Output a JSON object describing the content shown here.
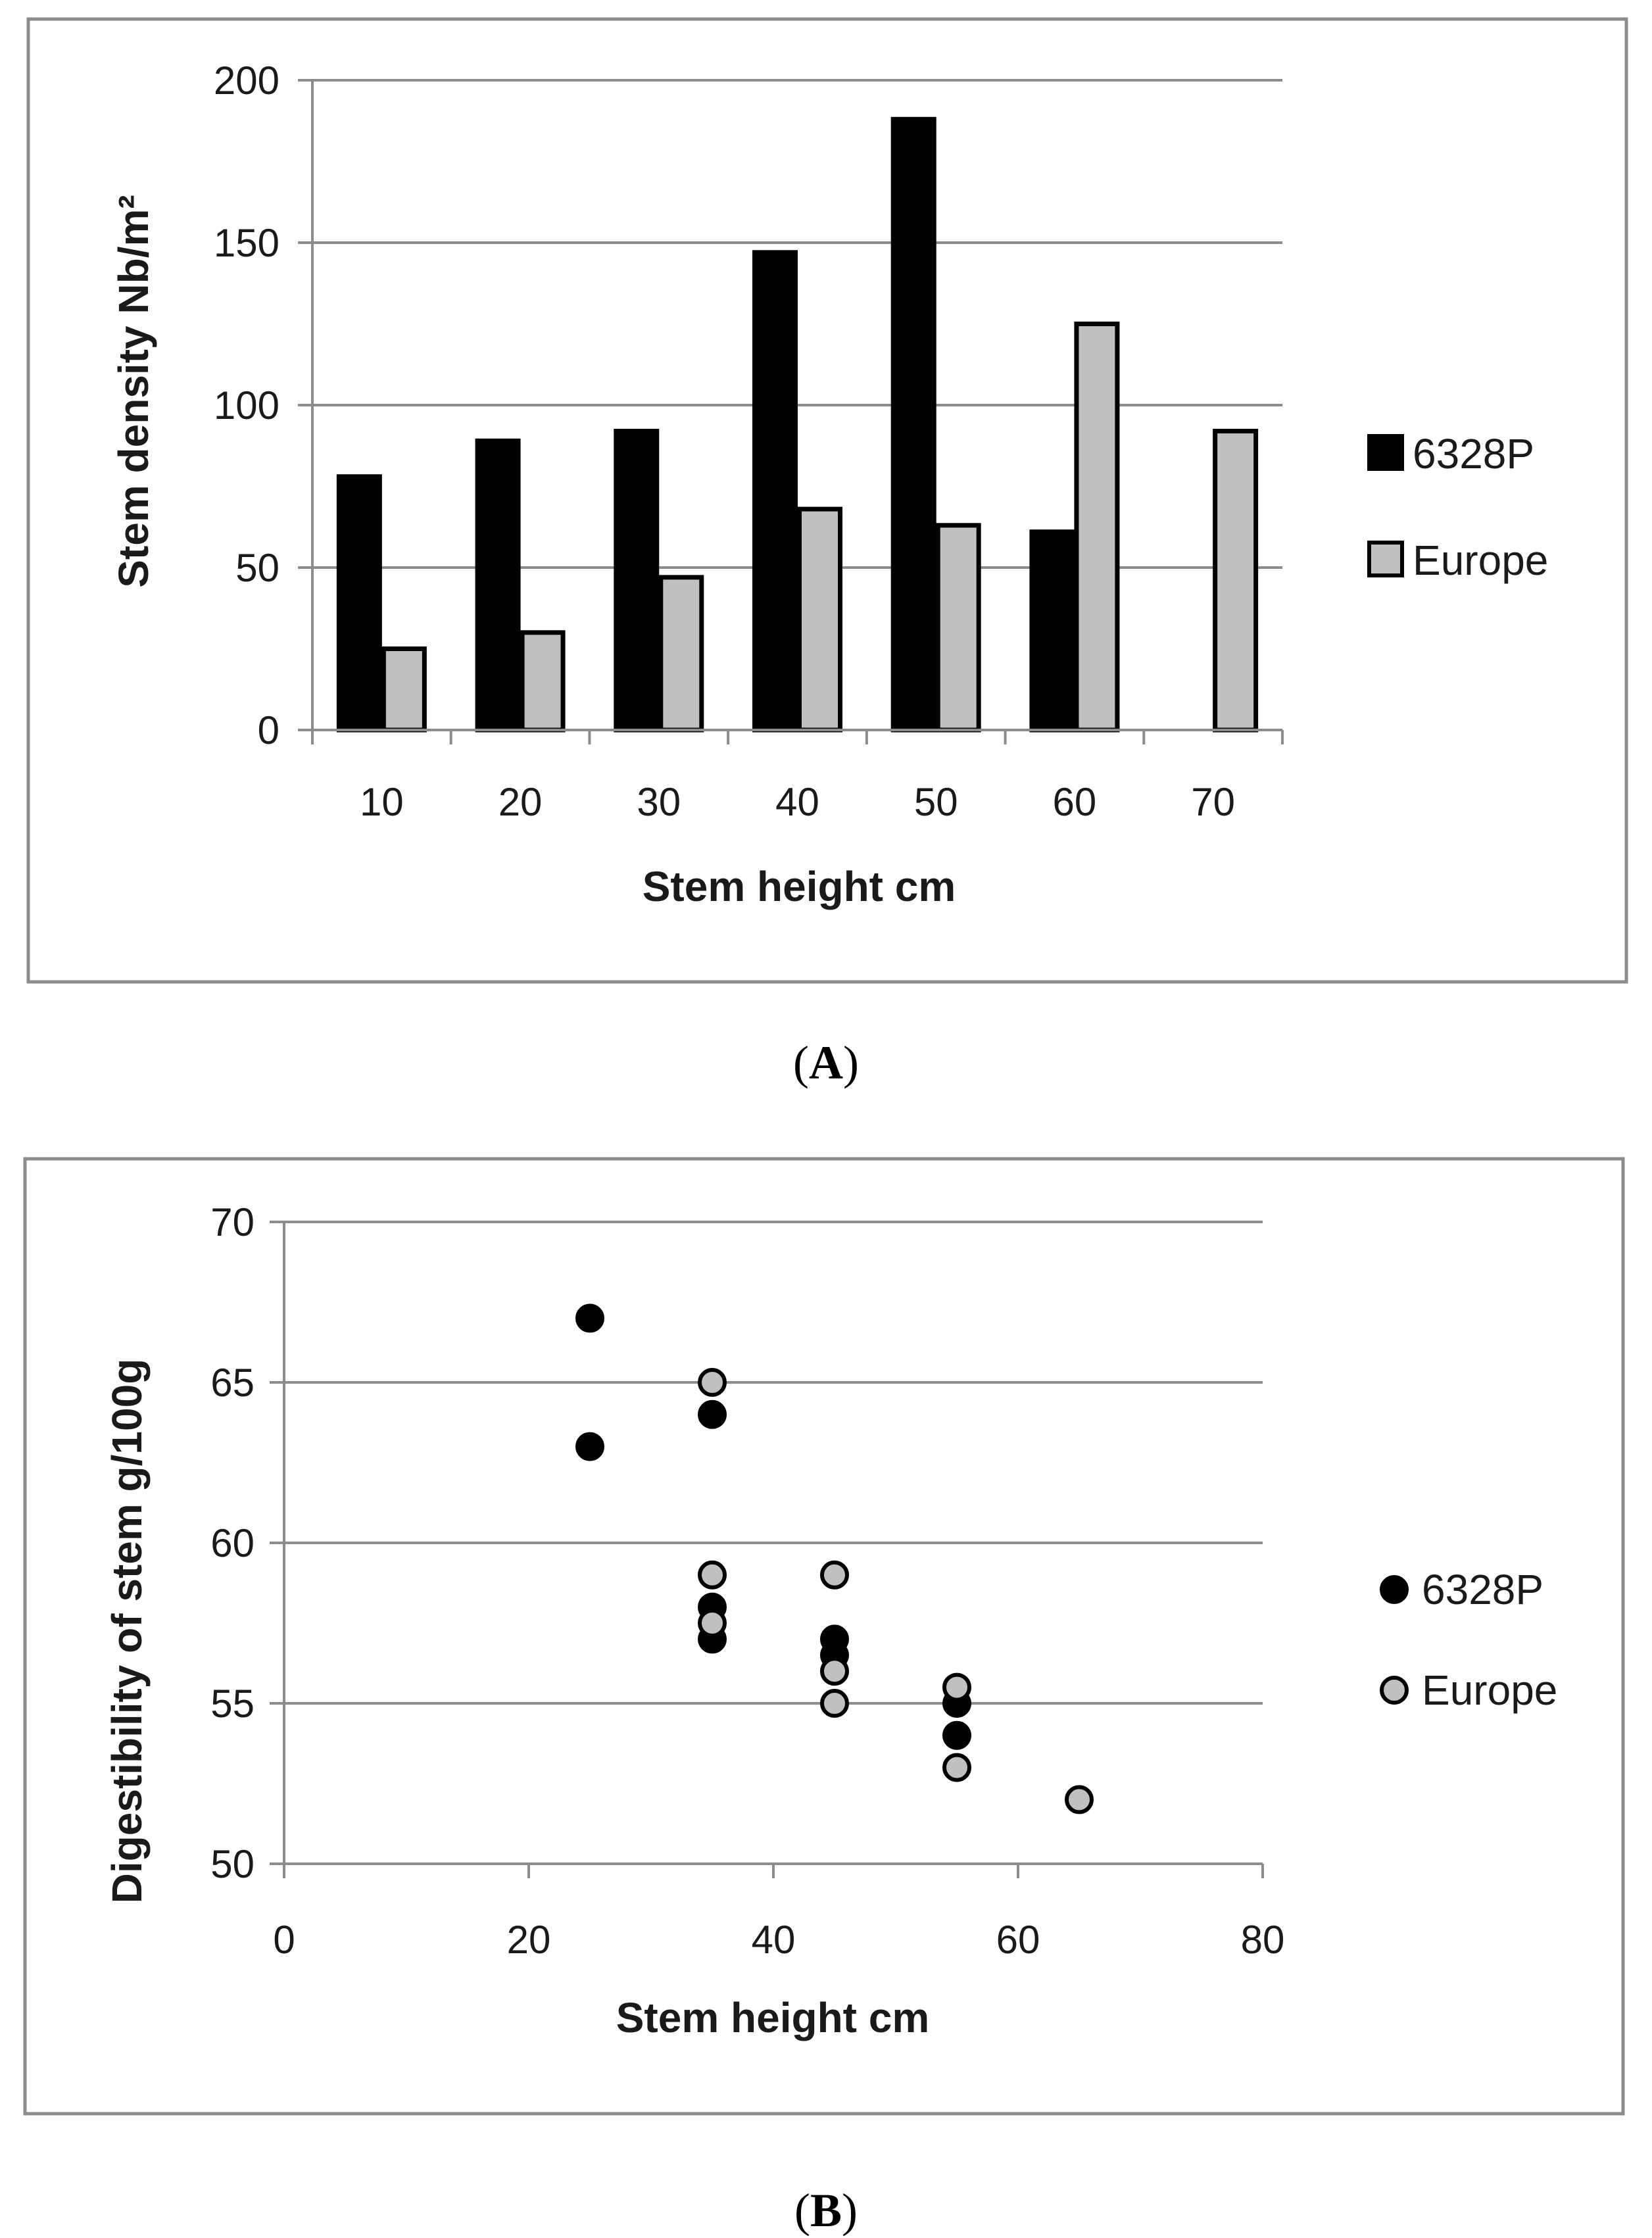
{
  "chart_data": [
    {
      "panel": "A",
      "type": "bar",
      "categories": [
        "10",
        "20",
        "30",
        "40",
        "50",
        "60",
        "70"
      ],
      "series": [
        {
          "name": "6328P",
          "color": "#000000",
          "values": [
            78,
            89,
            92,
            147,
            188,
            61,
            0
          ]
        },
        {
          "name": "Europe",
          "color": "#c0c0c0",
          "values": [
            25,
            30,
            47,
            68,
            63,
            125,
            92
          ]
        }
      ],
      "title": "",
      "xlabel": "Stem height cm",
      "ylabel": "Stem density Nb/m²",
      "ylim": [
        0,
        200
      ],
      "yticks": [
        0,
        50,
        100,
        150,
        200
      ],
      "grid": true,
      "legend_position": "right"
    },
    {
      "panel": "B",
      "type": "scatter",
      "series": [
        {
          "name": "6328P",
          "color": "#000000",
          "points": [
            [
              25,
              67
            ],
            [
              25,
              63
            ],
            [
              35,
              64
            ],
            [
              35,
              58
            ],
            [
              35,
              57
            ],
            [
              45,
              57
            ],
            [
              45,
              56.5
            ],
            [
              55,
              55
            ],
            [
              55,
              54
            ]
          ]
        },
        {
          "name": "Europe",
          "color": "#c0c0c0",
          "points": [
            [
              35,
              65
            ],
            [
              35,
              59
            ],
            [
              35,
              57.5
            ],
            [
              45,
              59
            ],
            [
              45,
              56
            ],
            [
              45,
              55
            ],
            [
              55,
              55.5
            ],
            [
              55,
              53
            ],
            [
              65,
              52
            ]
          ]
        }
      ],
      "title": "",
      "xlabel": "Stem height cm",
      "ylabel": "Digestibility of stem g/100g",
      "xlim": [
        0,
        80
      ],
      "xticks": [
        0,
        20,
        40,
        60,
        80
      ],
      "ylim": [
        50,
        70
      ],
      "yticks": [
        50,
        55,
        60,
        65,
        70
      ],
      "grid": true,
      "legend_position": "right"
    }
  ],
  "captions": {
    "a": "A",
    "b": "B"
  }
}
